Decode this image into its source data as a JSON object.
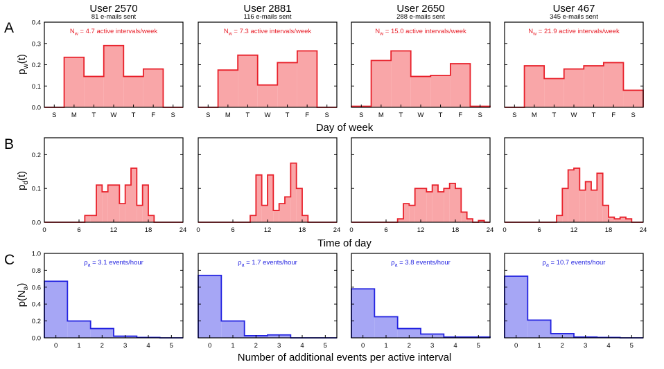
{
  "users": [
    {
      "name": "User 2570",
      "emails": "81 e-mails sent"
    },
    {
      "name": "User 2881",
      "emails": "116 e-mails sent"
    },
    {
      "name": "User 2650",
      "emails": "288 e-mails sent"
    },
    {
      "name": "User 467",
      "emails": "345 e-mails sent"
    }
  ],
  "rows": [
    {
      "letter": "A",
      "xlabel": "Day of week",
      "ylabel_main": "p",
      "ylabel_sub": "w",
      "ylabel_tail": "(t)"
    },
    {
      "letter": "B",
      "xlabel": "Time of day",
      "ylabel_main": "p",
      "ylabel_sub": "d",
      "ylabel_tail": "(t)"
    },
    {
      "letter": "C",
      "xlabel": "Number of additional events per active interval",
      "ylabel_main": "p(N",
      "ylabel_sub": "a",
      "ylabel_tail": ")"
    }
  ],
  "colors": {
    "red_line": "#e8202a",
    "red_fill": "#f9a6a8",
    "blue_line": "#2323e0",
    "blue_fill": "#a6a6f5",
    "axis": "#000000"
  },
  "chart_data": [
    {
      "type": "bar",
      "row": "A",
      "x_ticks": [
        "S",
        "M",
        "T",
        "W",
        "T",
        "F",
        "S"
      ],
      "ylim": [
        0,
        0.4
      ],
      "y_ticks": [
        "0.0",
        "0.1",
        "0.2",
        "0.3",
        "0.4"
      ],
      "annotation_prefix": "N",
      "annotation_sub": "w",
      "series": [
        {
          "name": "User 2570",
          "annotation": " = 4.7 active intervals/week",
          "values": [
            0.0,
            0.235,
            0.145,
            0.29,
            0.145,
            0.18,
            0.0
          ]
        },
        {
          "name": "User 2881",
          "annotation": " = 7.3 active intervals/week",
          "values": [
            0.0,
            0.175,
            0.245,
            0.105,
            0.21,
            0.265,
            0.0
          ]
        },
        {
          "name": "User 2650",
          "annotation": " = 15.0 active intervals/week",
          "values": [
            0.005,
            0.22,
            0.265,
            0.145,
            0.15,
            0.205,
            0.005
          ]
        },
        {
          "name": "User 467",
          "annotation": " = 21.9 active intervals/week",
          "values": [
            0.0,
            0.195,
            0.135,
            0.18,
            0.195,
            0.21,
            0.08
          ]
        }
      ]
    },
    {
      "type": "bar",
      "row": "B",
      "xlim": [
        0,
        24
      ],
      "x_ticks": [
        "0",
        "6",
        "12",
        "18",
        "24"
      ],
      "ylim": [
        0,
        0.25
      ],
      "y_ticks": [
        "0.0",
        "0.1",
        "0.2"
      ],
      "series": [
        {
          "name": "User 2570",
          "values": [
            0,
            0,
            0,
            0,
            0,
            0,
            0,
            0.02,
            0.02,
            0.11,
            0.09,
            0.11,
            0.11,
            0.055,
            0.11,
            0.16,
            0.05,
            0.11,
            0.02,
            0,
            0,
            0,
            0,
            0
          ]
        },
        {
          "name": "User 2881",
          "values": [
            0,
            0,
            0,
            0,
            0,
            0,
            0,
            0,
            0,
            0.02,
            0.14,
            0.05,
            0.14,
            0.035,
            0.055,
            0.075,
            0.175,
            0.1,
            0.02,
            0,
            0,
            0,
            0,
            0
          ]
        },
        {
          "name": "User 2650",
          "values": [
            0,
            0,
            0,
            0,
            0,
            0,
            0,
            0,
            0.01,
            0.055,
            0.05,
            0.1,
            0.1,
            0.09,
            0.11,
            0.09,
            0.1,
            0.115,
            0.1,
            0.03,
            0.01,
            0,
            0.005,
            0
          ]
        },
        {
          "name": "User 467",
          "values": [
            0,
            0,
            0,
            0,
            0,
            0,
            0,
            0,
            0,
            0.02,
            0.1,
            0.155,
            0.16,
            0.095,
            0.12,
            0.095,
            0.145,
            0.05,
            0.015,
            0.01,
            0.015,
            0.01,
            0,
            0
          ]
        }
      ]
    },
    {
      "type": "bar",
      "row": "C",
      "x_ticks": [
        "0",
        "1",
        "2",
        "3",
        "4",
        "5"
      ],
      "ylim": [
        0,
        1.0
      ],
      "y_ticks": [
        "0.0",
        "0.2",
        "0.4",
        "0.6",
        "0.8",
        "1.0"
      ],
      "annotation_prefix": "ρ",
      "annotation_sub": "a",
      "series": [
        {
          "name": "User 2570",
          "annotation": " = 3.1 events/hour",
          "values": [
            0.67,
            0.2,
            0.11,
            0.02,
            0.005,
            0.0
          ]
        },
        {
          "name": "User 2881",
          "annotation": " = 1.7 events/hour",
          "values": [
            0.74,
            0.2,
            0.025,
            0.035,
            0.0,
            0.0
          ]
        },
        {
          "name": "User 2650",
          "annotation": " = 3.8 events/hour",
          "values": [
            0.58,
            0.25,
            0.11,
            0.045,
            0.01,
            0.01
          ]
        },
        {
          "name": "User 467",
          "annotation": " = 10.7 events/hour",
          "values": [
            0.73,
            0.21,
            0.05,
            0.01,
            0.005,
            0.0
          ]
        }
      ]
    }
  ]
}
